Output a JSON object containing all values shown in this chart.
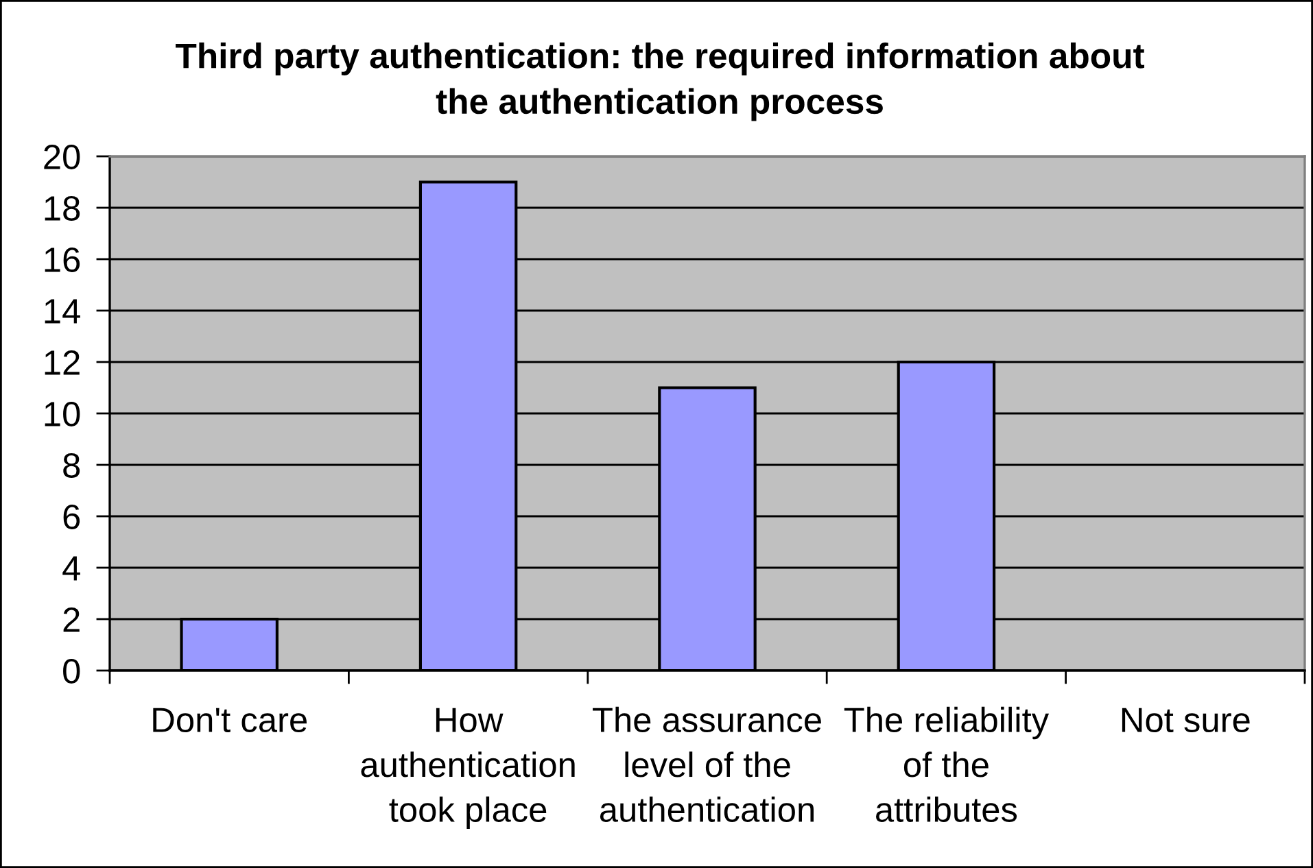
{
  "chart_data": {
    "type": "bar",
    "title": "Third party authentication: the required information about the authentication process",
    "categories": [
      "Don't care",
      "How authentication took place",
      "The assurance level of the authentication",
      "The reliability of the attributes",
      "Not sure"
    ],
    "values": [
      2,
      19,
      11,
      12,
      0
    ],
    "color": "#9999ff",
    "ylim": [
      0,
      20
    ],
    "yticks": [
      0,
      2,
      4,
      6,
      8,
      10,
      12,
      14,
      16,
      18,
      20
    ],
    "grid": "y"
  }
}
